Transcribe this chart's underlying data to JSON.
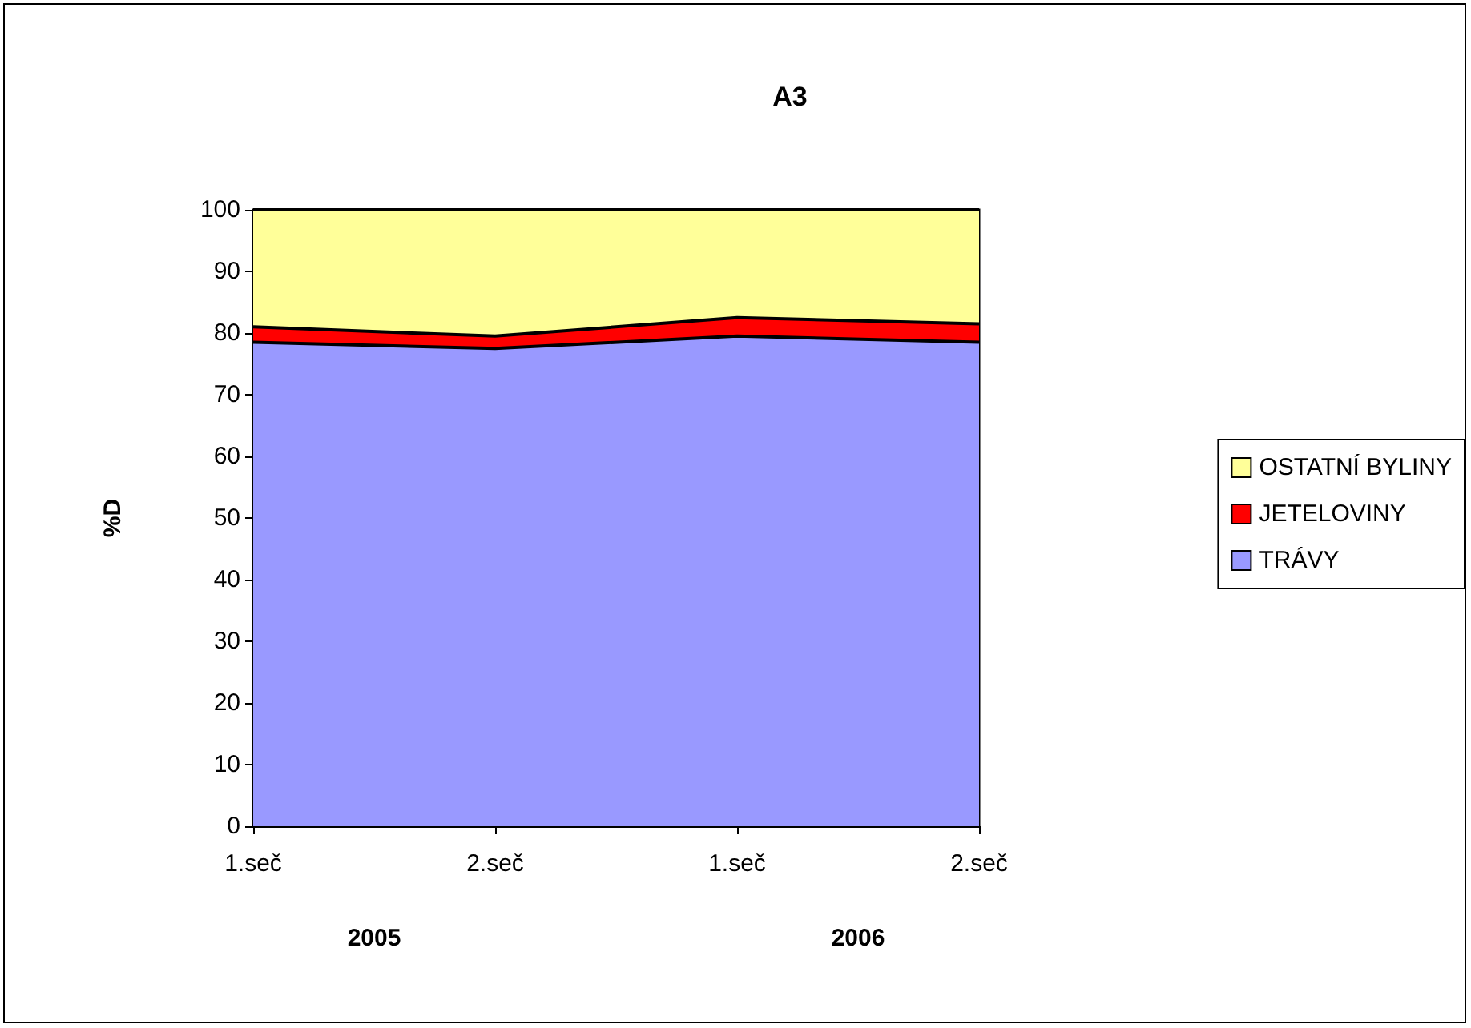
{
  "chart_data": {
    "type": "area",
    "title": "A3",
    "ylabel": "%D",
    "categories": [
      "1.seč",
      "2.seč",
      "1.seč",
      "2.seč"
    ],
    "series": [
      {
        "name": "TRÁVY",
        "color": "#9999ff",
        "values": [
          78.5,
          77.5,
          79.5,
          78.5
        ]
      },
      {
        "name": "JETELOVINY",
        "color": "#ff0000",
        "values": [
          2.5,
          2,
          3,
          3
        ]
      },
      {
        "name": "OSTATNÍ BYLINY",
        "color": "#ffff99",
        "values": [
          19,
          20.5,
          17.5,
          18.5
        ]
      }
    ],
    "stacked": true,
    "ylim": [
      0,
      100
    ],
    "yticks": [
      0,
      10,
      20,
      30,
      40,
      50,
      60,
      70,
      80,
      90,
      100
    ],
    "grid": false,
    "legend": "right",
    "annotations": [
      "2005",
      "2006"
    ]
  }
}
